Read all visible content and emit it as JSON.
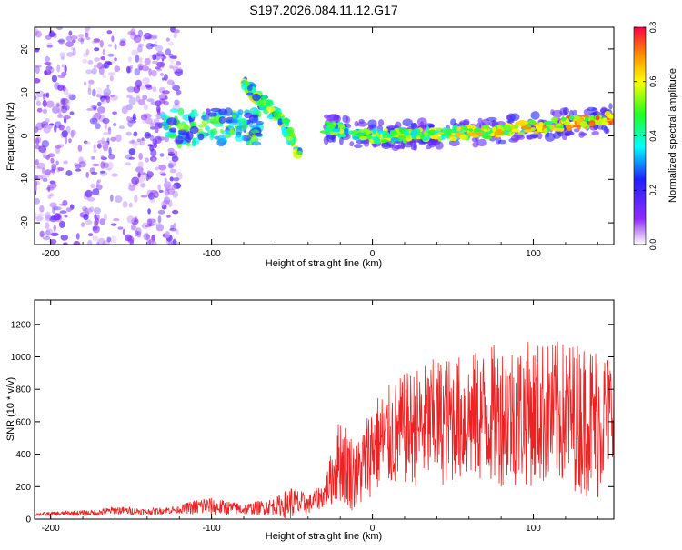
{
  "chart_data": [
    {
      "type": "heatmap",
      "title": "S197.2026.084.11.12.G17",
      "xlabel": "Height of straight line (km)",
      "ylabel": "Frequency (Hz)",
      "xlim": [
        -210,
        150
      ],
      "ylim": [
        -25,
        25
      ],
      "xticks": [
        -200,
        -100,
        0,
        100
      ],
      "yticks": [
        -20,
        -10,
        0,
        10,
        20
      ],
      "colorbar": {
        "label": "Normalized spectral amplitude",
        "range": [
          0,
          0.8
        ],
        "ticks": [
          "0.0",
          "0.2",
          "0.4",
          "0.6",
          "0.8"
        ]
      },
      "features": [
        {
          "name": "noisy region",
          "x_range": [
            -210,
            -120
          ],
          "freq_range": [
            -25,
            25
          ],
          "level": 0.1
        },
        {
          "name": "stable signal",
          "x_range": [
            -130,
            -70
          ],
          "freq": 2,
          "level": 0.4
        },
        {
          "name": "diagonal track",
          "x_points": [
            -80,
            -55,
            -45
          ],
          "freq_points": [
            12,
            3,
            -5
          ],
          "level": 0.5
        },
        {
          "name": "main track",
          "x_range": [
            -30,
            150
          ],
          "freq_points": [
            [
              -30,
              2
            ],
            [
              0,
              0
            ],
            [
              50,
              0.5
            ],
            [
              100,
              2
            ],
            [
              150,
              4
            ]
          ],
          "level": 0.6
        }
      ]
    },
    {
      "type": "line",
      "xlabel": "Height of straight line (km)",
      "ylabel": "SNR (10 * v/v)",
      "xlim": [
        -210,
        150
      ],
      "ylim": [
        0,
        1350
      ],
      "xticks": [
        -200,
        -100,
        0,
        100
      ],
      "yticks": [
        0,
        200,
        400,
        600,
        800,
        1000,
        1200
      ],
      "series": [
        {
          "name": "SNR",
          "color": "#ee2222",
          "envelope": {
            "x": [
              -210,
              -170,
              -160,
              -140,
              -120,
              -105,
              -90,
              -80,
              -60,
              -50,
              -40,
              -30,
              -20,
              -10,
              0,
              20,
              40,
              60,
              80,
              100,
              120,
              140,
              150
            ],
            "mean": [
              30,
              40,
              55,
              45,
              60,
              80,
              70,
              60,
              80,
              100,
              90,
              150,
              380,
              250,
              450,
              550,
              600,
              620,
              650,
              650,
              650,
              600,
              700
            ],
            "amplitude": [
              10,
              20,
              25,
              20,
              25,
              60,
              45,
              35,
              55,
              110,
              60,
              80,
              280,
              220,
              300,
              350,
              400,
              400,
              450,
              450,
              450,
              500,
              300
            ]
          }
        }
      ]
    }
  ]
}
